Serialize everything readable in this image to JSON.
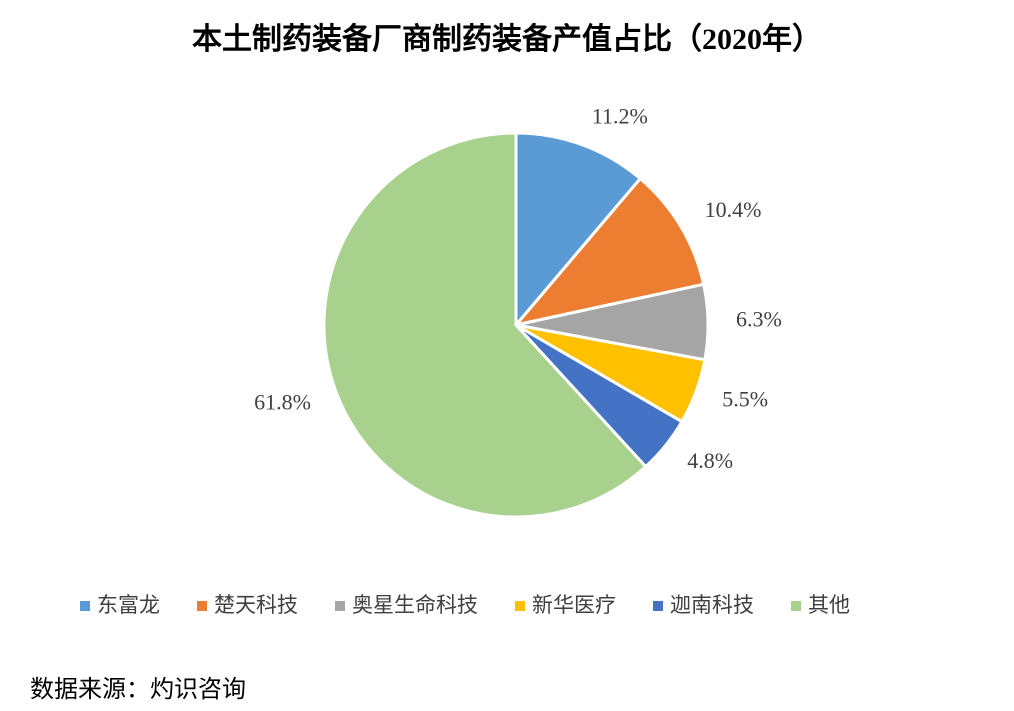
{
  "chart_data": {
    "type": "pie",
    "title": "本土制药装备厂商制药装备产值占比（2020年）",
    "categories": [
      "东富龙",
      "楚天科技",
      "奥星生命科技",
      "新华医疗",
      "迦南科技",
      "其他"
    ],
    "values": [
      11.2,
      10.4,
      6.3,
      5.5,
      4.8,
      61.8
    ],
    "value_labels": [
      "11.2%",
      "10.4%",
      "6.3%",
      "5.5%",
      "4.8%",
      "61.8%"
    ],
    "colors": [
      "#5b9bd5",
      "#ed7d31",
      "#a5a5a5",
      "#ffc000",
      "#4472c4",
      "#a9d18e"
    ],
    "legend": "bottom",
    "source": "数据来源：灼识咨询"
  }
}
